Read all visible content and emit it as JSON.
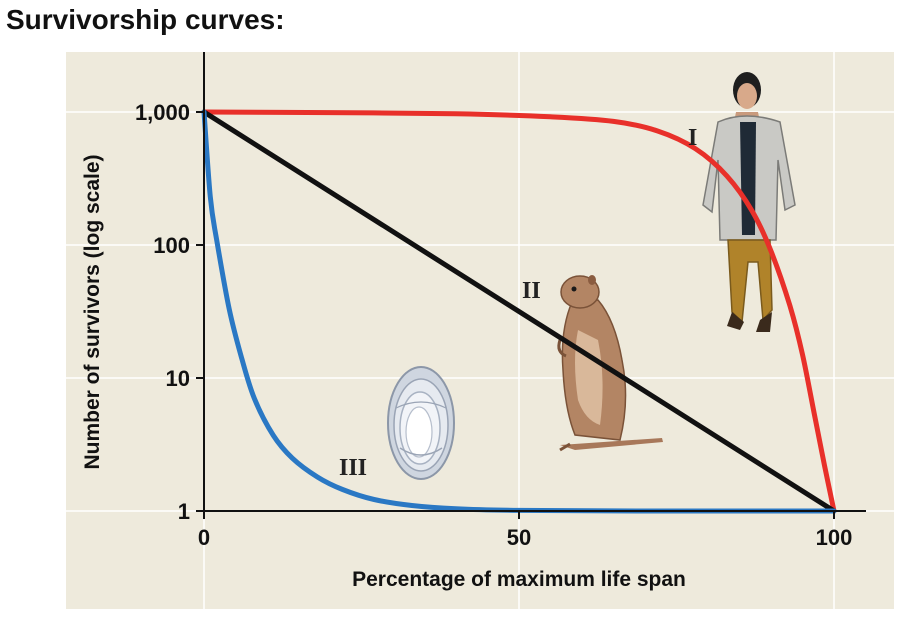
{
  "title": "Survivorship curves:",
  "chart_data": {
    "type": "line",
    "xlabel": "Percentage of maximum life span",
    "ylabel": "Number of survivors (log scale)",
    "xlim": [
      0,
      100
    ],
    "ylim": [
      1,
      1000
    ],
    "y_scale": "log",
    "x_ticks": [
      "0",
      "50",
      "100"
    ],
    "x_tick_values": [
      0,
      50,
      100
    ],
    "y_ticks": [
      "1,000",
      "100",
      "10",
      "1"
    ],
    "y_tick_values": [
      1000,
      100,
      10,
      1
    ],
    "grid": true,
    "series": [
      {
        "name": "I",
        "color": "#e8302a",
        "x": [
          0,
          20,
          40,
          55,
          65,
          72,
          78,
          83,
          87,
          90,
          93,
          95,
          97,
          98.5,
          100
        ],
        "y": [
          1000,
          990,
          970,
          920,
          850,
          720,
          530,
          330,
          180,
          90,
          35,
          15,
          5,
          2.2,
          1
        ]
      },
      {
        "name": "II",
        "color": "#111111",
        "x": [
          0,
          100
        ],
        "y": [
          1000,
          1
        ]
      },
      {
        "name": "III",
        "color": "#2a78c4",
        "x": [
          0,
          1,
          2,
          4,
          6,
          8,
          11,
          14,
          18,
          22,
          27,
          33,
          40,
          50,
          70,
          100
        ],
        "y": [
          1000,
          230,
          110,
          33,
          14,
          7,
          3.7,
          2.5,
          1.8,
          1.45,
          1.22,
          1.1,
          1.04,
          1.01,
          1,
          1
        ]
      }
    ]
  },
  "icons": {
    "type_one": "human-figure-icon",
    "type_two": "squirrel-icon",
    "type_three": "oyster-icon"
  }
}
